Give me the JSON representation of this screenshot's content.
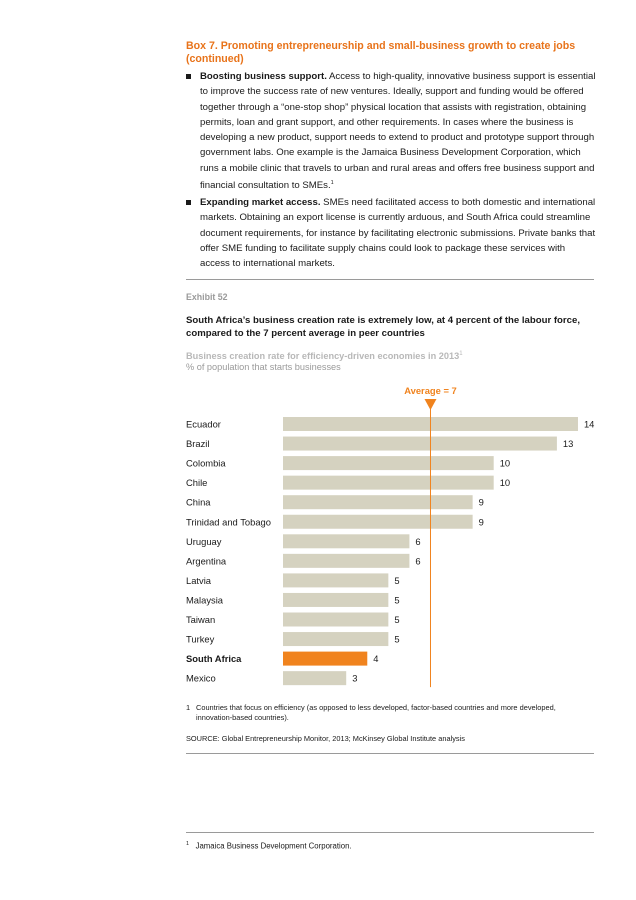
{
  "box": {
    "title": "Box 7. Promoting entrepreneurship and small-business growth to create jobs (continued)",
    "bullets": [
      {
        "lead": "Boosting business support.",
        "text": " Access to high-quality, innovative business support is essential to improve the success rate of new ventures. Ideally, support and funding would be offered together through a “one-stop shop” physical location that assists with registration, obtaining permits, loan and grant support, and other requirements. In cases where the business is developing a new product, support needs to extend to product and prototype support through government labs. One example is the Jamaica Business Development Corporation, which runs a mobile clinic that travels to urban and rural areas and offers free business support and financial consultation to SMEs.",
        "note": "1"
      },
      {
        "lead": "Expanding market access.",
        "text": " SMEs need facilitated access to both domestic and international markets. Obtaining an export license is currently arduous, and South Africa could streamline document requirements, for instance by facilitating electronic submissions. Private banks that offer SME funding to facilitate supply chains could look to package these services with access to international markets.",
        "note": ""
      }
    ]
  },
  "exhibit": {
    "label": "Exhibit 52",
    "title": "South Africa’s business creation rate is extremely low, at 4 percent of the labour force, compared to the 7 percent average in peer countries",
    "subtitle": "Business creation rate for efficiency-driven economies in 2013",
    "subtitle_note": "1",
    "units": "% of population that starts businesses",
    "footnote_num": "1",
    "footnote": "Countries that focus on efficiency (as opposed to less developed, factor-based countries and more developed, innovation-based countries).",
    "source": "SOURCE: Global Entrepreneurship Monitor, 2013; McKinsey Global Institute analysis"
  },
  "chart_data": {
    "type": "bar",
    "orientation": "horizontal",
    "categories": [
      "Ecuador",
      "Brazil",
      "Colombia",
      "Chile",
      "China",
      "Trinidad and Tobago",
      "Uruguay",
      "Argentina",
      "Latvia",
      "Malaysia",
      "Taiwan",
      "Turkey",
      "South Africa",
      "Mexico"
    ],
    "values": [
      14,
      13,
      10,
      10,
      9,
      9,
      6,
      6,
      5,
      5,
      5,
      5,
      4,
      3
    ],
    "highlight": "South Africa",
    "reference_line": {
      "label": "Average = 7",
      "value": 7
    },
    "xlim": [
      0,
      14
    ],
    "colors": {
      "bar": "#d5d2c0",
      "highlight": "#f0831e",
      "reference": "#f0831e"
    },
    "grid": false,
    "legend": "none"
  },
  "page_footnote": {
    "num": "1",
    "text": "Jamaica Business Development Corporation."
  }
}
